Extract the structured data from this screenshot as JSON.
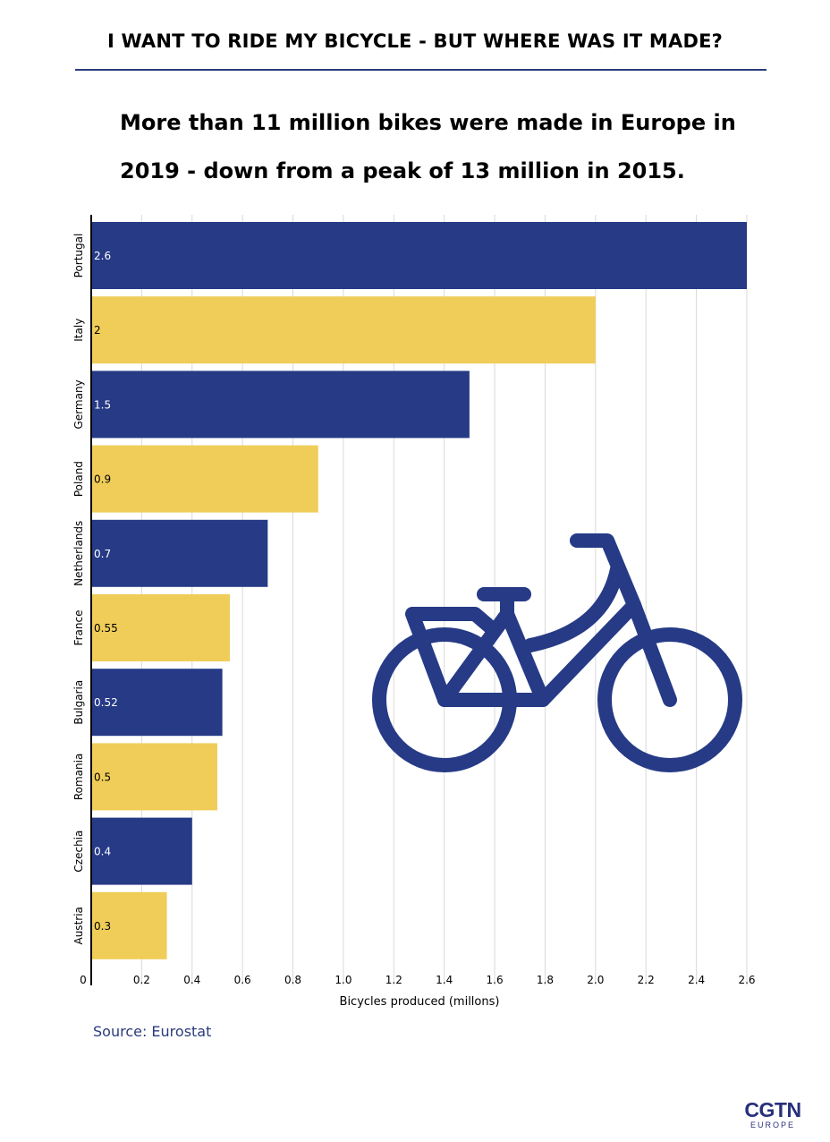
{
  "header": {
    "title": "I WANT TO RIDE MY BICYCLE - BUT WHERE WAS IT MADE?"
  },
  "subtitle": "More than 11 million bikes were made in Europe in 2019 - down from a peak of 13 million in 2015.",
  "chart_data": {
    "type": "bar",
    "orientation": "horizontal",
    "categories": [
      "Portugal",
      "Italy",
      "Germany",
      "Poland",
      "Netherlands",
      "France",
      "Bulgaria",
      "Romania",
      "Czechia",
      "Austria"
    ],
    "values": [
      2.6,
      2,
      1.5,
      0.9,
      0.7,
      0.55,
      0.52,
      0.5,
      0.4,
      0.3
    ],
    "data_labels": [
      "2.6",
      "2",
      "1.5",
      "0.9",
      "0.7",
      "0.55",
      "0.52",
      "0.5",
      "0.4",
      "0.3"
    ],
    "bar_colors": [
      "#263a86",
      "#efcd58",
      "#263a86",
      "#efcd58",
      "#263a86",
      "#efcd58",
      "#263a86",
      "#efcd58",
      "#263a86",
      "#efcd58"
    ],
    "label_colors": [
      "#ffffff",
      "#000000",
      "#ffffff",
      "#000000",
      "#ffffff",
      "#000000",
      "#ffffff",
      "#000000",
      "#ffffff",
      "#000000"
    ],
    "xlabel": "Bicycles produced (millons)",
    "ylabel": "",
    "xlim": [
      0,
      2.6
    ],
    "xticks": [
      0,
      0.2,
      0.4,
      0.6,
      0.8,
      1.0,
      1.2,
      1.4,
      1.6,
      1.8,
      2.0,
      2.2,
      2.4,
      2.6
    ],
    "xtick_labels": [
      "0",
      "0.2",
      "0.4",
      "0.6",
      "0.8",
      "1.0",
      "1.2",
      "1.4",
      "1.6",
      "1.8",
      "2.0",
      "2.2",
      "2.4",
      "2.6"
    ],
    "grid": true,
    "legend": "none"
  },
  "illustration": {
    "icon": "bicycle-icon",
    "color": "#263a86"
  },
  "source": "Source: Eurostat",
  "logo": {
    "main": "CGTN",
    "sub": "EUROPE",
    "color": "#27307a"
  }
}
